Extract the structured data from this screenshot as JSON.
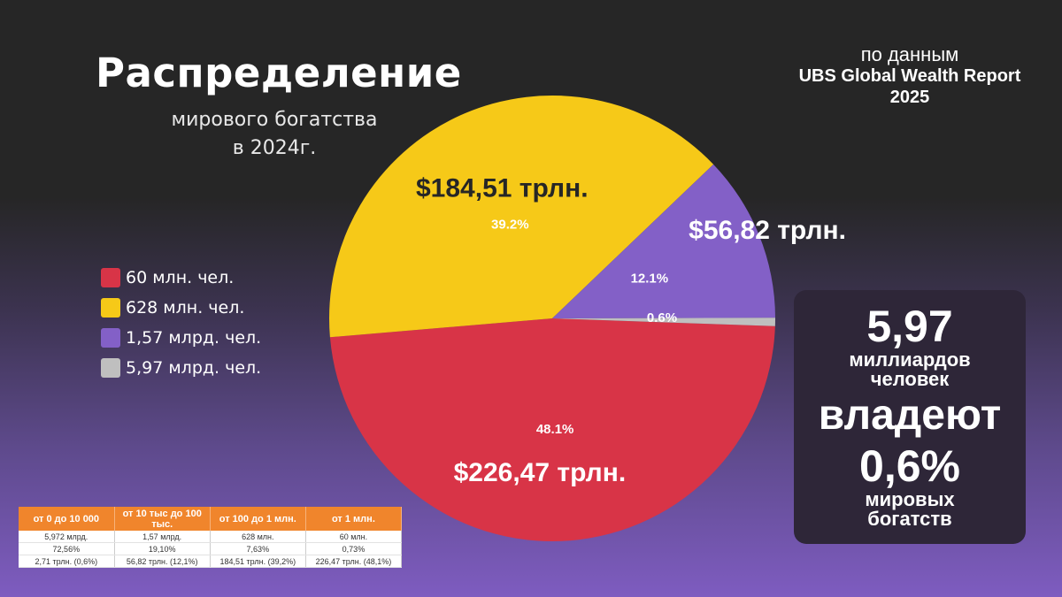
{
  "header": {
    "title": "Распределение",
    "subtitle_line1": "мирового богатства",
    "subtitle_line2": "в 2024г."
  },
  "source": {
    "lead": "по данным",
    "name_line1": "UBS Global Wealth Report",
    "name_line2": "2025"
  },
  "legend": [
    {
      "label": "60 млн. чел.",
      "color": "#d83447"
    },
    {
      "label": "628 млн. чел.",
      "color": "#f6c918"
    },
    {
      "label": "1,57 млрд. чел.",
      "color": "#8360c7"
    },
    {
      "label": "5,97 млрд. чел.",
      "color": "#bfbfbf"
    }
  ],
  "chart_data": {
    "type": "pie",
    "start_angle_deg": 2,
    "slices": [
      {
        "name": "60 млн. чел.",
        "value": 48.1,
        "percent_label": "48.1%",
        "value_label": "$226,47 трлн.",
        "color": "#d83447",
        "value_label_color": "#ffffff"
      },
      {
        "name": "628 млн. чел.",
        "value": 39.2,
        "percent_label": "39.2%",
        "value_label": "$184,51 трлн.",
        "color": "#f6c918",
        "value_label_color": "#262626"
      },
      {
        "name": "1,57 млрд. чел.",
        "value": 12.1,
        "percent_label": "12.1%",
        "value_label": "$56,82 трлн.",
        "color": "#8360c7",
        "value_label_color": "#ffffff"
      },
      {
        "name": "5,97 млрд. чел.",
        "value": 0.6,
        "percent_label": "0.6%",
        "value_label": "",
        "color": "#bfbfbf",
        "value_label_color": "#ffffff"
      }
    ]
  },
  "callout": {
    "line1": "5,97",
    "line2": "миллиардов",
    "line3": "человек",
    "line4": "владеют",
    "line5": "0,6%",
    "line6": "мировых",
    "line7": "богатств"
  },
  "table": {
    "headers": [
      "от 0 до 10 000",
      "от 10 тыс до 100 тыс.",
      "от 100 до 1 млн.",
      "от 1 млн."
    ],
    "rows": [
      [
        "5,972 млрд.",
        "1,57 млрд.",
        "628 млн.",
        "60 млн."
      ],
      [
        "72,56%",
        "19,10%",
        "7,63%",
        "0,73%"
      ],
      [
        "2,71 трлн. (0,6%)",
        "56,82 трлн. (12,1%)",
        "184,51 трлн. (39,2%)",
        "226,47 трлн. (48,1%)"
      ]
    ]
  }
}
